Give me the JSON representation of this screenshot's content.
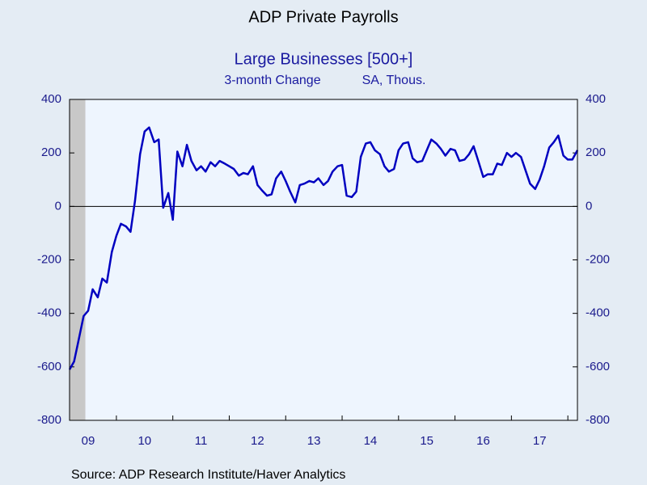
{
  "chart_data": {
    "type": "line",
    "title": "ADP Private Payrolls",
    "subtitle": "Large Businesses [500+]",
    "y_label": "3-month Change",
    "units": "SA, Thous.",
    "source": "Source:  ADP Research Institute/Haver Analytics",
    "x": [
      2009.17,
      2009.25,
      2009.33,
      2009.42,
      2009.5,
      2009.58,
      2009.67,
      2009.75,
      2009.83,
      2009.92,
      2010,
      2010.08,
      2010.17,
      2010.25,
      2010.33,
      2010.42,
      2010.5,
      2010.58,
      2010.67,
      2010.75,
      2010.83,
      2010.92,
      2011,
      2011.08,
      2011.17,
      2011.25,
      2011.33,
      2011.42,
      2011.5,
      2011.58,
      2011.67,
      2011.75,
      2011.83,
      2011.92,
      2012,
      2012.08,
      2012.17,
      2012.25,
      2012.33,
      2012.42,
      2012.5,
      2012.58,
      2012.67,
      2012.75,
      2012.83,
      2012.92,
      2013,
      2013.08,
      2013.17,
      2013.25,
      2013.33,
      2013.42,
      2013.5,
      2013.58,
      2013.67,
      2013.75,
      2013.83,
      2013.92,
      2014,
      2014.08,
      2014.17,
      2014.25,
      2014.33,
      2014.42,
      2014.5,
      2014.58,
      2014.67,
      2014.75,
      2014.83,
      2014.92,
      2015,
      2015.08,
      2015.17,
      2015.25,
      2015.33,
      2015.42,
      2015.5,
      2015.58,
      2015.67,
      2015.75,
      2015.83,
      2015.92,
      2016,
      2016.08,
      2016.17,
      2016.25,
      2016.33,
      2016.42,
      2016.5,
      2016.58,
      2016.67,
      2016.75,
      2016.83,
      2016.92,
      2017,
      2017.08,
      2017.17,
      2017.25,
      2017.33,
      2017.42,
      2017.5,
      2017.58,
      2017.67,
      2017.75,
      2017.83,
      2017.92,
      2018,
      2018.08,
      2018.17
    ],
    "series": [
      {
        "name": "Large Businesses [500+]",
        "color": "#0000c0",
        "values": [
          -610,
          -580,
          -500,
          -410,
          -390,
          -310,
          -340,
          -270,
          -285,
          -170,
          -110,
          -65,
          -75,
          -95,
          20,
          195,
          280,
          295,
          240,
          250,
          -5,
          50,
          -50,
          205,
          150,
          230,
          170,
          135,
          150,
          130,
          165,
          150,
          170,
          160,
          150,
          140,
          115,
          125,
          120,
          150,
          80,
          60,
          40,
          45,
          105,
          130,
          95,
          55,
          15,
          80,
          85,
          95,
          90,
          105,
          80,
          95,
          130,
          150,
          155,
          40,
          35,
          55,
          185,
          235,
          240,
          210,
          195,
          150,
          130,
          140,
          210,
          235,
          240,
          180,
          165,
          170,
          210,
          250,
          235,
          215,
          190,
          215,
          210,
          170,
          175,
          195,
          225,
          165,
          110,
          120,
          120,
          160,
          155,
          200,
          185,
          200,
          185,
          135,
          85,
          65,
          100,
          150,
          220,
          240,
          265,
          190,
          175,
          175,
          210
        ]
      }
    ],
    "xlim": [
      2009.17,
      2018.17
    ],
    "xticks": [
      {
        "value": 2009.5,
        "label": "09"
      },
      {
        "value": 2010.5,
        "label": "10"
      },
      {
        "value": 2011.5,
        "label": "11"
      },
      {
        "value": 2012.5,
        "label": "12"
      },
      {
        "value": 2013.5,
        "label": "13"
      },
      {
        "value": 2014.5,
        "label": "14"
      },
      {
        "value": 2015.5,
        "label": "15"
      },
      {
        "value": 2016.5,
        "label": "16"
      },
      {
        "value": 2017.5,
        "label": "17"
      }
    ],
    "ylim": [
      -800,
      400
    ],
    "yticks": [
      -800,
      -600,
      -400,
      -200,
      0,
      200,
      400
    ],
    "y2lim": [
      -800,
      400
    ],
    "y2ticks": [
      -800,
      -600,
      -400,
      -200,
      0,
      200,
      400
    ],
    "shade": [
      [
        2009.17,
        2009.45
      ]
    ],
    "shade_color": "#c8c8c8",
    "zero_line": true
  }
}
